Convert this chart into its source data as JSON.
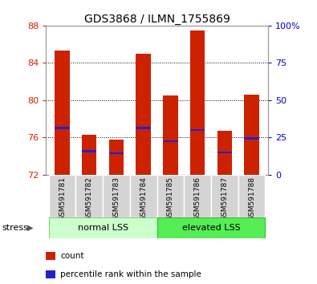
{
  "title": "GDS3868 / ILMN_1755869",
  "samples": [
    "GSM591781",
    "GSM591782",
    "GSM591783",
    "GSM591784",
    "GSM591785",
    "GSM591786",
    "GSM591787",
    "GSM591788"
  ],
  "bar_bottoms": [
    72,
    72,
    72,
    72,
    72,
    72,
    72,
    72
  ],
  "bar_tops": [
    85.3,
    76.3,
    75.8,
    85.0,
    80.5,
    87.5,
    76.7,
    80.6
  ],
  "percentile_values": [
    77.0,
    74.5,
    74.3,
    77.0,
    75.6,
    76.8,
    74.4,
    75.9
  ],
  "ylim_left": [
    72,
    88
  ],
  "yticks_left": [
    72,
    76,
    80,
    84,
    88
  ],
  "ylim_right": [
    0,
    100
  ],
  "yticks_right": [
    0,
    25,
    50,
    75,
    100
  ],
  "ytick_labels_right": [
    "0",
    "25",
    "50",
    "75",
    "100%"
  ],
  "bar_color": "#cc2200",
  "percentile_color": "#2222cc",
  "group1_label": "normal LSS",
  "group2_label": "elevated LSS",
  "group1_indices": [
    0,
    1,
    2,
    3
  ],
  "group2_indices": [
    4,
    5,
    6,
    7
  ],
  "group1_color": "#ccffcc",
  "group2_color": "#55ee55",
  "stress_label": "stress",
  "legend_count": "count",
  "legend_percentile": "percentile rank within the sample",
  "left_axis_color": "#cc2200",
  "right_axis_color": "#0000cc",
  "bar_width": 0.55,
  "title_fontsize": 10
}
